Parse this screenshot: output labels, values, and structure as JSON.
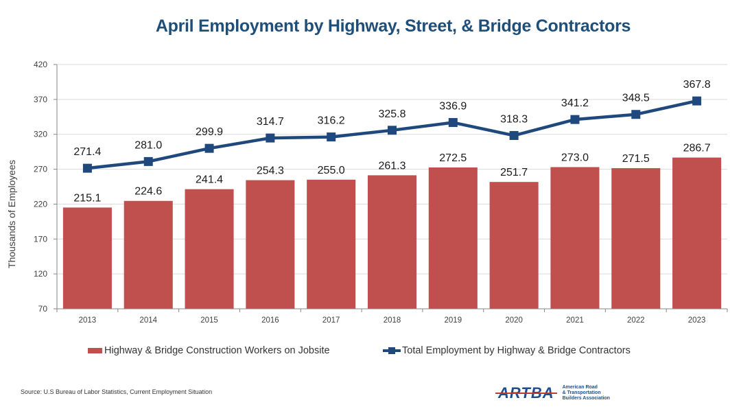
{
  "chart_data": {
    "type": "bar",
    "title": "April Employment by Highway, Street, & Bridge Contractors",
    "xlabel": "",
    "ylabel": "Thousands of Employees",
    "ylim": [
      70,
      420
    ],
    "yticks": [
      70,
      120,
      170,
      220,
      270,
      320,
      370,
      420
    ],
    "grid": true,
    "legend_position": "bottom",
    "categories": [
      "2013",
      "2014",
      "2015",
      "2016",
      "2017",
      "2018",
      "2019",
      "2020",
      "2021",
      "2022",
      "2023"
    ],
    "series": [
      {
        "name": "Highway & Bridge Construction Workers on Jobsite",
        "type": "bar",
        "color": "#c0504d",
        "values": [
          215.1,
          224.6,
          241.4,
          254.3,
          255.0,
          261.3,
          272.5,
          251.7,
          273.0,
          271.5,
          286.7
        ],
        "labels": [
          "215.1",
          "224.6",
          "241.4",
          "254.3",
          "255.0",
          "261.3",
          "272.5",
          "251.7",
          "273.0",
          "271.5",
          "286.7"
        ]
      },
      {
        "name": "Total Employment by Highway & Bridge Contractors",
        "type": "line",
        "marker": "square",
        "color": "#1f497d",
        "values": [
          271.4,
          281.0,
          299.9,
          314.7,
          316.2,
          325.8,
          336.9,
          318.3,
          341.2,
          348.5,
          367.8
        ],
        "labels": [
          "271.4",
          "281.0",
          "299.9",
          "314.7",
          "316.2",
          "325.8",
          "336.9",
          "318.3",
          "341.2",
          "348.5",
          "367.8"
        ]
      }
    ]
  },
  "footer": {
    "source": "Source: U.S Bureau of Labor Statistics, Current Employment Situation",
    "logo_mark": "ARTBA",
    "logo_lines": [
      "American Road",
      "& Transportation",
      "Builders Association"
    ]
  }
}
